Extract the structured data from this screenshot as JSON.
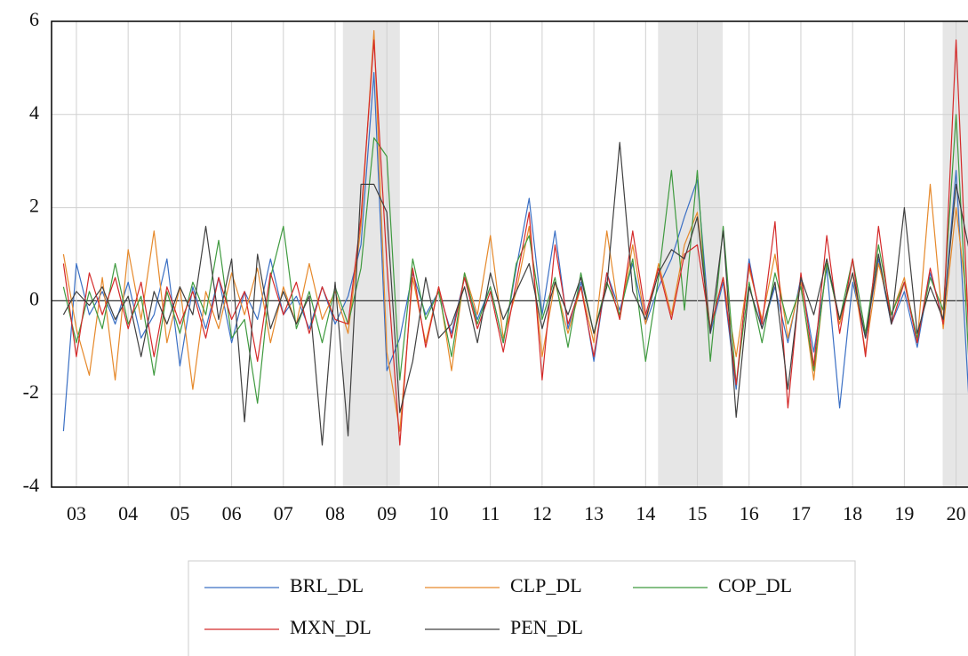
{
  "chart_data": {
    "type": "line",
    "x": [
      2002.75,
      2003.0,
      2003.25,
      2003.5,
      2003.75,
      2004.0,
      2004.25,
      2004.5,
      2004.75,
      2005.0,
      2005.25,
      2005.5,
      2005.75,
      2006.0,
      2006.25,
      2006.5,
      2006.75,
      2007.0,
      2007.25,
      2007.5,
      2007.75,
      2008.0,
      2008.25,
      2008.5,
      2008.75,
      2009.0,
      2009.25,
      2009.5,
      2009.75,
      2010.0,
      2010.25,
      2010.5,
      2010.75,
      2011.0,
      2011.25,
      2011.5,
      2011.75,
      2012.0,
      2012.25,
      2012.5,
      2012.75,
      2013.0,
      2013.25,
      2013.5,
      2013.75,
      2014.0,
      2014.25,
      2014.5,
      2014.75,
      2015.0,
      2015.25,
      2015.5,
      2015.75,
      2016.0,
      2016.25,
      2016.5,
      2016.75,
      2017.0,
      2017.25,
      2017.5,
      2017.75,
      2018.0,
      2018.25,
      2018.5,
      2018.75,
      2019.0,
      2019.25,
      2019.5,
      2019.75,
      2020.0,
      2020.25
    ],
    "series": [
      {
        "name": "BRL_DL",
        "color": "#3a6fc4",
        "values": [
          -2.8,
          0.8,
          -0.3,
          0.2,
          -0.5,
          0.4,
          -0.8,
          -0.3,
          0.9,
          -1.4,
          0.3,
          -0.6,
          0.5,
          -0.9,
          0.2,
          -0.4,
          0.9,
          -0.3,
          0.1,
          -0.6,
          0.3,
          -0.5,
          0.1,
          1.2,
          4.9,
          -1.5,
          -0.8,
          0.6,
          -0.3,
          0.2,
          -0.7,
          0.5,
          -0.4,
          0.3,
          -0.9,
          0.7,
          2.2,
          -0.3,
          1.5,
          -0.6,
          0.4,
          -1.3,
          0.6,
          -0.2,
          0.8,
          -0.5,
          0.3,
          0.9,
          1.8,
          2.6,
          -0.7,
          0.4,
          -1.9,
          0.9,
          -0.6,
          0.3,
          -0.9,
          0.5,
          -1.1,
          0.7,
          -2.3,
          0.4,
          -0.8,
          0.9,
          -0.5,
          0.2,
          -1.0,
          0.6,
          -0.4,
          2.8,
          -2.2
        ]
      },
      {
        "name": "CLP_DL",
        "color": "#e6892b",
        "values": [
          1.0,
          -0.6,
          -1.6,
          0.5,
          -1.7,
          1.1,
          -0.4,
          1.5,
          -0.9,
          0.3,
          -1.9,
          0.2,
          -0.6,
          0.6,
          -0.3,
          0.7,
          -0.9,
          0.3,
          -0.5,
          0.8,
          -0.4,
          0.2,
          -0.7,
          1.6,
          5.8,
          -1.1,
          -2.8,
          0.5,
          -0.9,
          0.3,
          -1.5,
          0.6,
          -0.3,
          1.4,
          -0.8,
          0.2,
          1.6,
          -1.2,
          0.4,
          -0.7,
          0.3,
          -0.9,
          1.5,
          -0.4,
          1.2,
          -0.5,
          0.8,
          -0.3,
          1.2,
          1.9,
          -0.6,
          0.5,
          -1.2,
          0.7,
          -0.4,
          1.0,
          -0.8,
          0.4,
          -1.7,
          0.9,
          -0.5,
          0.6,
          -1.1,
          0.8,
          -0.3,
          0.5,
          -0.9,
          2.5,
          -0.6,
          2.0,
          -0.4
        ]
      },
      {
        "name": "COP_DL",
        "color": "#3f9a3f",
        "values": [
          0.3,
          -0.9,
          0.2,
          -0.6,
          0.8,
          -0.5,
          0.1,
          -1.6,
          0.2,
          -0.7,
          0.4,
          -0.3,
          1.3,
          -0.8,
          -0.4,
          -2.2,
          0.5,
          1.6,
          -0.6,
          0.2,
          -0.9,
          0.3,
          -0.5,
          0.7,
          3.5,
          3.1,
          -1.7,
          0.9,
          -0.4,
          0.2,
          -1.2,
          0.6,
          -0.5,
          0.3,
          -0.9,
          0.8,
          1.4,
          -0.4,
          0.5,
          -1.0,
          0.6,
          -0.7,
          0.4,
          -0.3,
          0.9,
          -1.3,
          0.5,
          2.8,
          -0.2,
          2.8,
          -1.3,
          1.6,
          -1.8,
          0.4,
          -0.9,
          0.6,
          -0.5,
          0.3,
          -1.5,
          0.8,
          -0.4,
          0.9,
          -0.7,
          1.2,
          -0.3,
          0.4,
          -0.8,
          0.5,
          -0.2,
          4.0,
          -1.4
        ]
      },
      {
        "name": "MXN_DL",
        "color": "#d42a2a",
        "values": [
          0.8,
          -1.2,
          0.6,
          -0.3,
          0.5,
          -0.6,
          0.4,
          -1.2,
          0.3,
          -0.5,
          0.2,
          -0.8,
          0.5,
          -0.4,
          0.2,
          -1.3,
          0.6,
          -0.3,
          0.4,
          -0.7,
          0.3,
          -0.4,
          -0.5,
          1.8,
          5.6,
          0.8,
          -3.1,
          0.7,
          -1.0,
          0.3,
          -0.8,
          0.5,
          -0.6,
          0.2,
          -1.1,
          0.4,
          1.9,
          -1.7,
          1.2,
          -0.5,
          0.3,
          -1.2,
          0.6,
          -0.4,
          1.5,
          -0.3,
          0.7,
          -0.4,
          1.0,
          1.2,
          -0.6,
          0.5,
          -1.8,
          0.8,
          -0.5,
          1.7,
          -2.3,
          0.6,
          -1.4,
          1.4,
          -0.7,
          0.9,
          -1.2,
          1.6,
          -0.5,
          0.4,
          -0.9,
          0.7,
          -0.5,
          5.6,
          -0.9
        ]
      },
      {
        "name": "PEN_DL",
        "color": "#404040",
        "values": [
          -0.3,
          0.2,
          -0.1,
          0.3,
          -0.4,
          0.1,
          -1.2,
          0.2,
          -0.5,
          0.3,
          -0.3,
          1.6,
          -0.4,
          0.9,
          -2.6,
          1.0,
          -0.6,
          0.2,
          -0.5,
          0.1,
          -3.1,
          0.4,
          -2.9,
          2.5,
          2.5,
          1.9,
          -2.4,
          -1.3,
          0.5,
          -0.8,
          -0.5,
          0.3,
          -0.9,
          0.6,
          -0.4,
          0.2,
          0.8,
          -0.6,
          0.4,
          -0.3,
          0.5,
          -0.7,
          0.3,
          3.4,
          0.2,
          -0.4,
          0.6,
          1.1,
          0.9,
          1.8,
          -0.7,
          1.5,
          -2.5,
          0.3,
          -0.6,
          0.4,
          -1.9,
          0.5,
          -0.3,
          0.9,
          -0.4,
          0.6,
          -0.8,
          1.0,
          -0.5,
          2.0,
          -0.7,
          0.3,
          -0.4,
          2.5,
          1.1
        ]
      }
    ],
    "xlim": [
      2002.52,
      2020.23
    ],
    "xticks": [
      {
        "value": 2003,
        "label": "03"
      },
      {
        "value": 2004,
        "label": "04"
      },
      {
        "value": 2005,
        "label": "05"
      },
      {
        "value": 2006,
        "label": "06"
      },
      {
        "value": 2007,
        "label": "07"
      },
      {
        "value": 2008,
        "label": "08"
      },
      {
        "value": 2009,
        "label": "09"
      },
      {
        "value": 2010,
        "label": "10"
      },
      {
        "value": 2011,
        "label": "11"
      },
      {
        "value": 2012,
        "label": "12"
      },
      {
        "value": 2013,
        "label": "13"
      },
      {
        "value": 2014,
        "label": "14"
      },
      {
        "value": 2015,
        "label": "15"
      },
      {
        "value": 2016,
        "label": "16"
      },
      {
        "value": 2017,
        "label": "17"
      },
      {
        "value": 2018,
        "label": "18"
      },
      {
        "value": 2019,
        "label": "19"
      },
      {
        "value": 2020,
        "label": "20"
      }
    ],
    "ylim": [
      -4,
      6
    ],
    "yticks": [
      -4,
      -2,
      0,
      2,
      4,
      6
    ],
    "shaded_regions": [
      [
        2008.15,
        2009.25
      ],
      [
        2014.24,
        2015.49
      ],
      [
        2019.74,
        2020.23
      ]
    ],
    "grid": true
  }
}
